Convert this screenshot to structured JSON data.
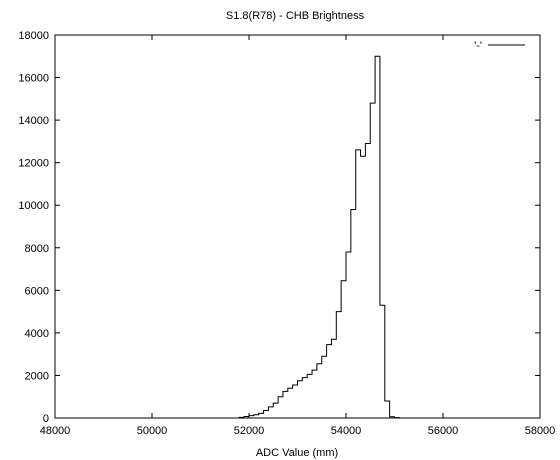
{
  "chart_data": {
    "type": "step",
    "title": "S1.8(R78) - CHB Brightness",
    "xlabel": "ADC Value (mm)",
    "ylabel": "",
    "xlim": [
      48000,
      58000
    ],
    "ylim": [
      0,
      18000
    ],
    "xticks": [
      48000,
      50000,
      52000,
      54000,
      56000,
      58000
    ],
    "yticks": [
      0,
      2000,
      4000,
      6000,
      8000,
      10000,
      12000,
      14000,
      16000,
      18000
    ],
    "legend": {
      "placement": "top-right"
    },
    "series": [
      {
        "name": "'-'",
        "color": "#000000",
        "points": [
          [
            48000,
            0
          ],
          [
            51800,
            30
          ],
          [
            51900,
            70
          ],
          [
            52000,
            110
          ],
          [
            52100,
            150
          ],
          [
            52200,
            220
          ],
          [
            52300,
            350
          ],
          [
            52400,
            520
          ],
          [
            52500,
            700
          ],
          [
            52600,
            1000
          ],
          [
            52700,
            1250
          ],
          [
            52800,
            1400
          ],
          [
            52900,
            1550
          ],
          [
            53000,
            1750
          ],
          [
            53100,
            1900
          ],
          [
            53200,
            2050
          ],
          [
            53300,
            2250
          ],
          [
            53400,
            2550
          ],
          [
            53500,
            2900
          ],
          [
            53600,
            3450
          ],
          [
            53700,
            3700
          ],
          [
            53800,
            5000
          ],
          [
            53900,
            6450
          ],
          [
            54000,
            7800
          ],
          [
            54100,
            9800
          ],
          [
            54200,
            12600
          ],
          [
            54300,
            12300
          ],
          [
            54400,
            12900
          ],
          [
            54500,
            14800
          ],
          [
            54600,
            17000
          ],
          [
            54700,
            5300
          ],
          [
            54800,
            800
          ],
          [
            54900,
            60
          ],
          [
            55000,
            20
          ],
          [
            55100,
            0
          ],
          [
            58000,
            0
          ]
        ]
      }
    ]
  }
}
